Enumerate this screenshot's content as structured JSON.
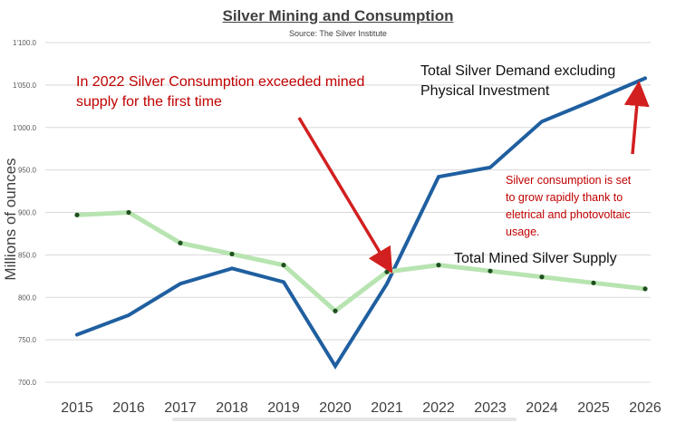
{
  "chart_data": {
    "type": "line",
    "title": "Silver Mining and Consumption",
    "subtitle": "Source: The Silver Institute",
    "xlabel": "",
    "ylabel": "Millions of ounces",
    "categories": [
      "2015",
      "2016",
      "2017",
      "2018",
      "2019",
      "2020",
      "2021",
      "2022",
      "2023",
      "2024",
      "2025",
      "2026"
    ],
    "yticks": [
      "700.0",
      "750.0",
      "800.0",
      "850.0",
      "900.0",
      "950.0",
      "1'000.0",
      "1'050.0",
      "1'100.0"
    ],
    "ylim": [
      700,
      1100
    ],
    "grid": true,
    "series": [
      {
        "name": "Total Silver Demand excluding Physical Investment",
        "color": "#1f5fa0",
        "values": [
          756,
          779,
          816,
          834,
          818,
          719,
          816,
          942,
          953,
          1007,
          1032,
          1058
        ]
      },
      {
        "name": "Total Mined Silver Supply",
        "color": "#b7e4b0",
        "marker_color": "#1f4f1f",
        "values": [
          897,
          900,
          864,
          851,
          838,
          784,
          830,
          838,
          831,
          824,
          817,
          810
        ]
      }
    ],
    "annotations": {
      "crossover": "In 2022 Silver Consumption exceeded mined supply for the first time",
      "demand_label": "Total Silver Demand excluding Physical Investment",
      "supply_label": "Total Mined Silver Supply",
      "growth_note": "Silver consumption is set to grow rapidly thank to eletrical and photovoltaic usage."
    },
    "annotation_color": "#d21f1f"
  }
}
